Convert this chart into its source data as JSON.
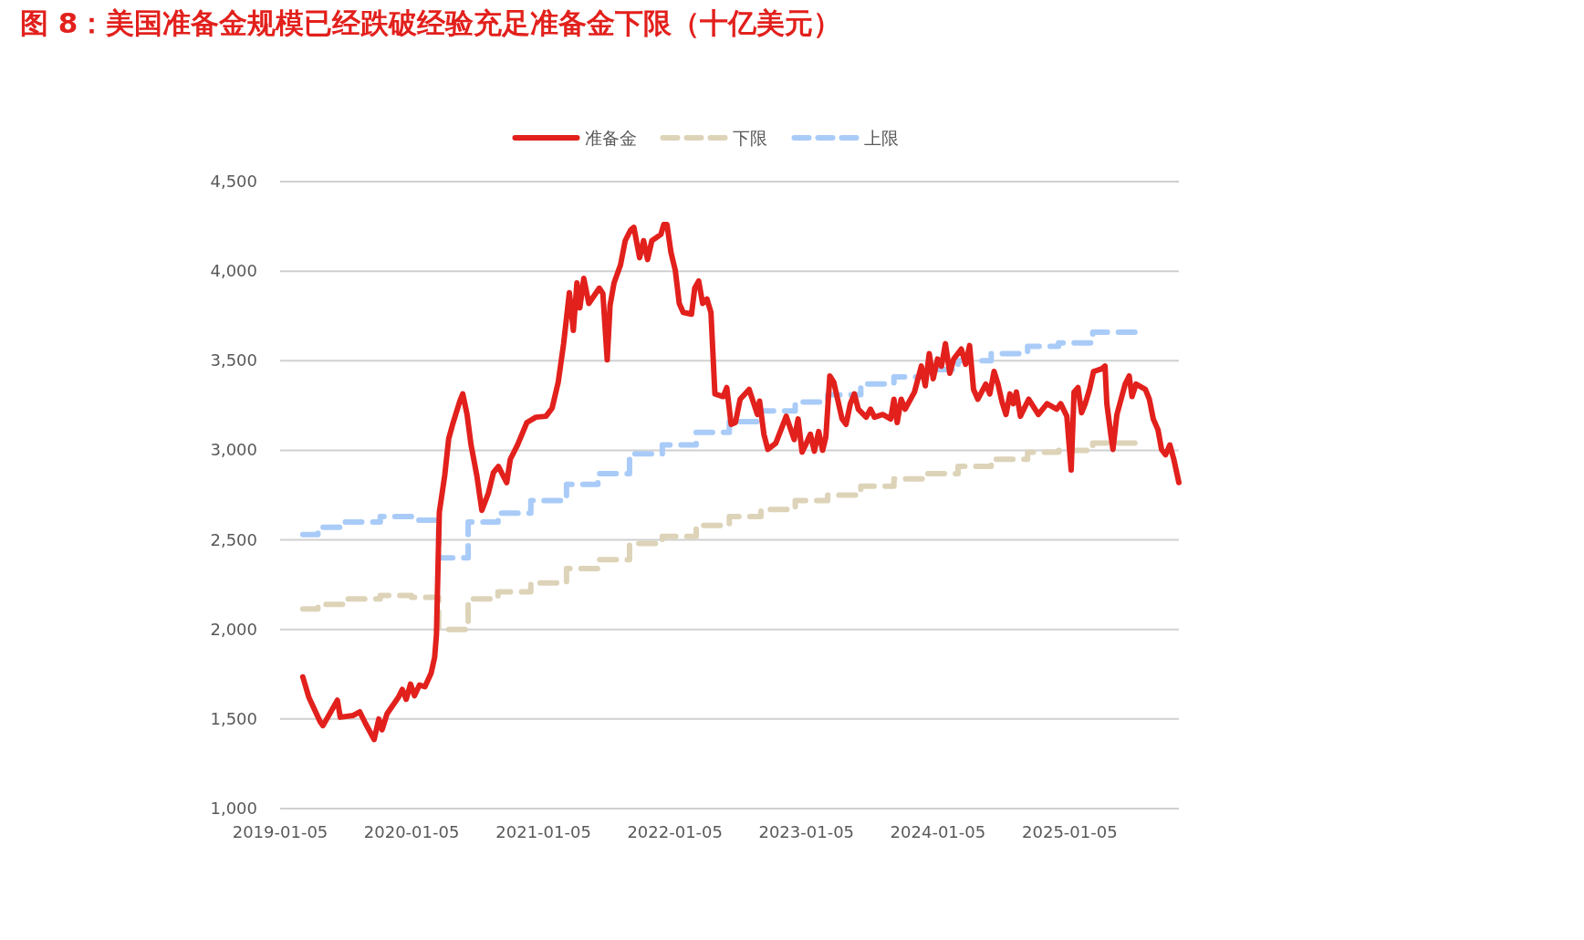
{
  "chart_data": {
    "type": "line",
    "title": "图 8：美国准备金规模已经跌破经验充足准备金下限（十亿美元）",
    "xlim": [
      "2019-01-05",
      "2025-11-04"
    ],
    "xticks": [
      "2019-01-05",
      "2020-01-05",
      "2021-01-05",
      "2022-01-05",
      "2023-01-05",
      "2024-01-05",
      "2025-01-05"
    ],
    "ylim": [
      1000,
      4500
    ],
    "yticks": [
      {
        "value": 1000,
        "label": "1,000"
      },
      {
        "value": 1500,
        "label": "1,500"
      },
      {
        "value": 2000,
        "label": "2,000"
      },
      {
        "value": 2500,
        "label": "2,500"
      },
      {
        "value": 3000,
        "label": "3,000"
      },
      {
        "value": 3500,
        "label": "3,500"
      },
      {
        "value": 4000,
        "label": "4,000"
      },
      {
        "value": 4500,
        "label": "4,500"
      }
    ],
    "grid": "y",
    "legend": "top",
    "marker": "none",
    "series": [
      {
        "name": "准备金",
        "color": "#e2201c",
        "line_style": "solid",
        "x": [
          "2019-03-09",
          "2019-03-26",
          "2019-04-26",
          "2019-05-04",
          "2019-06-13",
          "2019-06-21",
          "2019-07-27",
          "2019-08-14",
          "2019-08-30",
          "2019-09-23",
          "2019-10-06",
          "2019-10-15",
          "2019-10-29",
          "2019-11-29",
          "2019-12-10",
          "2019-12-21",
          "2020-01-02",
          "2020-01-13",
          "2020-01-27",
          "2020-02-11",
          "2020-02-28",
          "2020-03-09",
          "2020-03-14",
          "2020-03-19",
          "2020-03-22",
          "2020-04-06",
          "2020-04-17",
          "2020-04-28",
          "2020-05-18",
          "2020-05-26",
          "2020-06-07",
          "2020-06-18",
          "2020-07-04",
          "2020-07-18",
          "2020-08-05",
          "2020-08-19",
          "2020-09-02",
          "2020-09-25",
          "2020-10-05",
          "2020-10-25",
          "2020-11-20",
          "2020-12-15",
          "2021-01-12",
          "2021-01-29",
          "2021-02-15",
          "2021-03-02",
          "2021-03-18",
          "2021-03-29",
          "2021-04-08",
          "2021-04-16",
          "2021-04-27",
          "2021-05-11",
          "2021-06-09",
          "2021-06-19",
          "2021-07-01",
          "2021-07-09",
          "2021-07-20",
          "2021-08-07",
          "2021-08-20",
          "2021-09-04",
          "2021-09-13",
          "2021-09-29",
          "2021-10-10",
          "2021-10-21",
          "2021-11-02",
          "2021-11-27",
          "2021-12-05",
          "2021-12-14",
          "2021-12-25",
          "2022-01-06",
          "2022-01-17",
          "2022-01-28",
          "2022-02-20",
          "2022-03-01",
          "2022-03-12",
          "2022-03-23",
          "2022-04-04",
          "2022-04-15",
          "2022-04-26",
          "2022-05-19",
          "2022-05-29",
          "2022-06-10",
          "2022-06-22",
          "2022-07-05",
          "2022-07-30",
          "2022-08-22",
          "2022-08-28",
          "2022-09-09",
          "2022-09-20",
          "2022-10-12",
          "2022-11-10",
          "2022-12-02",
          "2022-12-13",
          "2022-12-24",
          "2023-01-05",
          "2023-01-16",
          "2023-01-27",
          "2023-02-08",
          "2023-02-19",
          "2023-02-28",
          "2023-03-11",
          "2023-03-22",
          "2023-04-14",
          "2023-04-25",
          "2023-05-07",
          "2023-05-18",
          "2023-05-29",
          "2023-06-20",
          "2023-07-02",
          "2023-07-13",
          "2023-08-05",
          "2023-08-27",
          "2023-09-05",
          "2023-09-14",
          "2023-09-25",
          "2023-10-06",
          "2023-11-01",
          "2023-11-20",
          "2023-12-01",
          "2023-12-12",
          "2023-12-23",
          "2024-01-04",
          "2024-01-15",
          "2024-01-26",
          "2024-02-07",
          "2024-02-18",
          "2024-03-10",
          "2024-03-22",
          "2024-04-02",
          "2024-04-13",
          "2024-04-25",
          "2024-05-17",
          "2024-05-28",
          "2024-06-09",
          "2024-06-20",
          "2024-07-01",
          "2024-07-12",
          "2024-07-23",
          "2024-08-01",
          "2024-08-10",
          "2024-08-21",
          "2024-09-13",
          "2024-10-10",
          "2024-11-03",
          "2024-11-30",
          "2024-12-11",
          "2024-12-28",
          "2025-01-09",
          "2025-01-17",
          "2025-01-28",
          "2025-02-07",
          "2025-02-17",
          "2025-03-01",
          "2025-03-12",
          "2025-04-04",
          "2025-04-13",
          "2025-04-18",
          "2025-04-29",
          "2025-05-05",
          "2025-05-16",
          "2025-06-08",
          "2025-06-19",
          "2025-06-27",
          "2025-07-08",
          "2025-08-03",
          "2025-08-14",
          "2025-08-25",
          "2025-09-07",
          "2025-09-17",
          "2025-09-28",
          "2025-10-10",
          "2025-10-21",
          "2025-11-04"
        ],
        "values": [
          1735,
          1620,
          1485,
          1463,
          1605,
          1510,
          1520,
          1540,
          1475,
          1385,
          1500,
          1440,
          1530,
          1620,
          1665,
          1610,
          1695,
          1630,
          1690,
          1680,
          1755,
          1845,
          1970,
          2410,
          2655,
          2860,
          3065,
          3145,
          3275,
          3315,
          3200,
          3030,
          2860,
          2665,
          2760,
          2875,
          2910,
          2820,
          2950,
          3030,
          3155,
          3185,
          3190,
          3235,
          3380,
          3595,
          3880,
          3670,
          3935,
          3795,
          3960,
          3820,
          3905,
          3875,
          3505,
          3810,
          3935,
          4035,
          4170,
          4230,
          4245,
          4075,
          4170,
          4065,
          4170,
          4205,
          4260,
          4260,
          4105,
          4005,
          3820,
          3770,
          3760,
          3905,
          3945,
          3820,
          3845,
          3770,
          3315,
          3300,
          3350,
          3145,
          3155,
          3285,
          3340,
          3200,
          3275,
          3090,
          3005,
          3040,
          3190,
          3060,
          3175,
          2990,
          3040,
          3090,
          2995,
          3105,
          3000,
          3075,
          3415,
          3380,
          3175,
          3145,
          3260,
          3315,
          3230,
          3185,
          3230,
          3185,
          3200,
          3175,
          3285,
          3155,
          3285,
          3230,
          3325,
          3470,
          3360,
          3540,
          3400,
          3510,
          3470,
          3595,
          3430,
          3510,
          3565,
          3480,
          3585,
          3340,
          3285,
          3370,
          3315,
          3440,
          3370,
          3270,
          3200,
          3315,
          3260,
          3325,
          3190,
          3285,
          3200,
          3260,
          3230,
          3260,
          3190,
          2890,
          3325,
          3350,
          3210,
          3260,
          3340,
          3440,
          3455,
          3470,
          3260,
          3090,
          3005,
          3200,
          3370,
          3415,
          3300,
          3370,
          3340,
          3285,
          3175,
          3115,
          3005,
          2975,
          3030,
          2950,
          2820
        ]
      },
      {
        "name": "下限",
        "color": "#ddd3b8",
        "type": "step",
        "line_style": "dashed",
        "x": [
          "2019-03-09",
          "2019-04-20",
          "2019-07-01",
          "2019-10-10",
          "2020-01-05",
          "2020-03-20",
          "2020-06-10",
          "2020-09-01",
          "2020-12-01",
          "2021-03-10",
          "2021-06-05",
          "2021-09-01",
          "2021-12-01",
          "2022-03-05",
          "2022-06-05",
          "2022-09-01",
          "2022-12-05",
          "2023-03-05",
          "2023-06-05",
          "2023-09-05",
          "2023-12-01",
          "2024-03-01",
          "2024-06-01",
          "2024-09-10",
          "2024-12-05",
          "2025-03-10",
          "2025-07-05"
        ],
        "values": [
          2115,
          2140,
          2170,
          2190,
          2180,
          2000,
          2170,
          2210,
          2260,
          2340,
          2390,
          2480,
          2520,
          2580,
          2630,
          2670,
          2720,
          2750,
          2800,
          2840,
          2870,
          2910,
          2950,
          2990,
          3000,
          3040,
          3040
        ]
      },
      {
        "name": "上限",
        "color": "#a9cbf8",
        "type": "step",
        "line_style": "dashed",
        "x": [
          "2019-03-09",
          "2019-04-20",
          "2019-07-01",
          "2019-10-10",
          "2020-01-05",
          "2020-03-20",
          "2020-06-10",
          "2020-09-01",
          "2020-12-01",
          "2021-03-10",
          "2021-06-05",
          "2021-09-01",
          "2021-12-01",
          "2022-03-05",
          "2022-06-05",
          "2022-09-01",
          "2022-12-05",
          "2023-03-05",
          "2023-06-05",
          "2023-09-05",
          "2023-12-01",
          "2024-03-01",
          "2024-06-01",
          "2024-09-10",
          "2024-12-05",
          "2025-03-10",
          "2025-07-05"
        ],
        "values": [
          2530,
          2570,
          2600,
          2630,
          2610,
          2400,
          2600,
          2650,
          2720,
          2810,
          2870,
          2980,
          3030,
          3100,
          3160,
          3220,
          3270,
          3310,
          3370,
          3410,
          3450,
          3500,
          3540,
          3580,
          3600,
          3660,
          3660
        ]
      }
    ]
  }
}
